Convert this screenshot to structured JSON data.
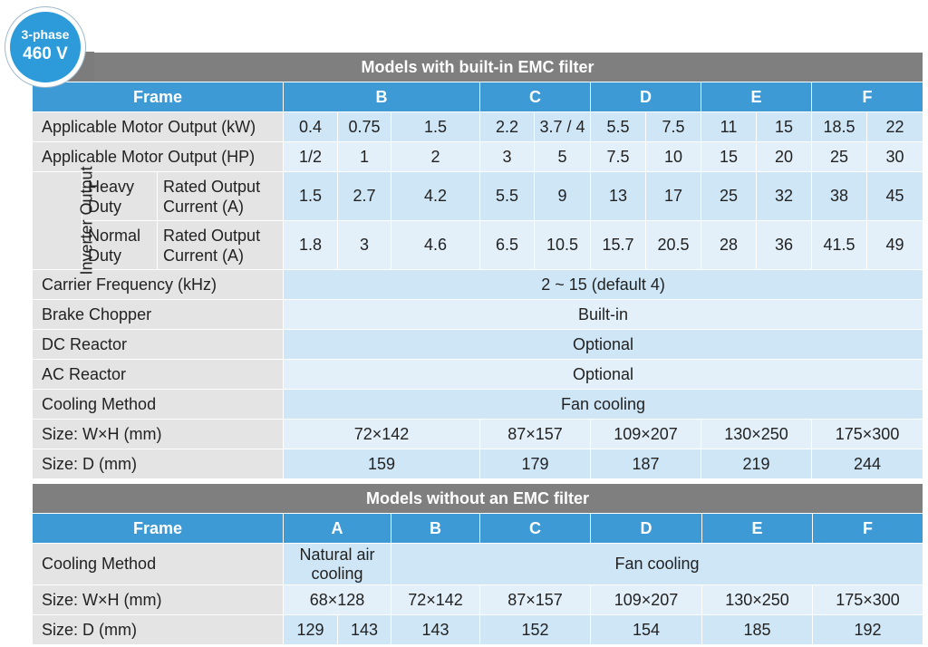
{
  "badge": {
    "line1": "3-phase",
    "line2": "460 V"
  },
  "section1": {
    "title": "Models with built-in EMC filter",
    "frame_label": "Frame",
    "frames": [
      "B",
      "C",
      "D",
      "E",
      "F"
    ],
    "rows": {
      "kw": {
        "label": "Applicable Motor Output (kW)",
        "values": [
          "0.4",
          "0.75",
          "1.5",
          "2.2",
          "3.7 / 4",
          "5.5",
          "7.5",
          "11",
          "15",
          "18.5",
          "22"
        ]
      },
      "hp": {
        "label": "Applicable Motor Output (HP)",
        "values": [
          "1/2",
          "1",
          "2",
          "3",
          "5",
          "7.5",
          "10",
          "15",
          "20",
          "25",
          "30"
        ]
      },
      "inverter_output_label": "Inverter Output",
      "heavy": {
        "duty": "Heavy Duty",
        "label": "Rated Output Current (A)",
        "values": [
          "1.5",
          "2.7",
          "4.2",
          "5.5",
          "9",
          "13",
          "17",
          "25",
          "32",
          "38",
          "45"
        ]
      },
      "normal": {
        "duty": "Normal Duty",
        "label": "Rated Output Current (A)",
        "values": [
          "1.8",
          "3",
          "4.6",
          "6.5",
          "10.5",
          "15.7",
          "20.5",
          "28",
          "36",
          "41.5",
          "49"
        ]
      },
      "carrier": {
        "label": "Carrier Frequency (kHz)",
        "value": "2 ~ 15 (default 4)"
      },
      "brake": {
        "label": "Brake Chopper",
        "value": "Built-in"
      },
      "dc": {
        "label": "DC Reactor",
        "value": "Optional"
      },
      "ac": {
        "label": "AC Reactor",
        "value": "Optional"
      },
      "cooling": {
        "label": "Cooling Method",
        "value": "Fan cooling"
      },
      "size_wh": {
        "label": "Size: W×H (mm)",
        "values": [
          "72×142",
          "87×157",
          "109×207",
          "130×250",
          "175×300"
        ]
      },
      "size_d": {
        "label": "Size: D (mm)",
        "values": [
          "159",
          "179",
          "187",
          "219",
          "244"
        ]
      }
    }
  },
  "section2": {
    "title": "Models without an EMC filter",
    "frame_label": "Frame",
    "frames": [
      "A",
      "B",
      "C",
      "D",
      "E",
      "F"
    ],
    "rows": {
      "cooling": {
        "label": "Cooling Method",
        "natural": "Natural air cooling",
        "fan": "Fan cooling"
      },
      "size_wh": {
        "label": "Size: W×H (mm)",
        "values": [
          "68×128",
          "72×142",
          "87×157",
          "109×207",
          "130×250",
          "175×300"
        ]
      },
      "size_d": {
        "label": "Size: D (mm)",
        "values": [
          "129",
          "143",
          "143",
          "152",
          "154",
          "185",
          "192"
        ]
      }
    }
  },
  "colors": {
    "header_gray": "#7f7f7f",
    "frame_blue": "#3e9ad5",
    "badge_blue": "#2d9bd9",
    "cell_blue": "#cfe6f7",
    "cell_light": "#e3f0fa",
    "label_gray": "#e4e4e4"
  }
}
